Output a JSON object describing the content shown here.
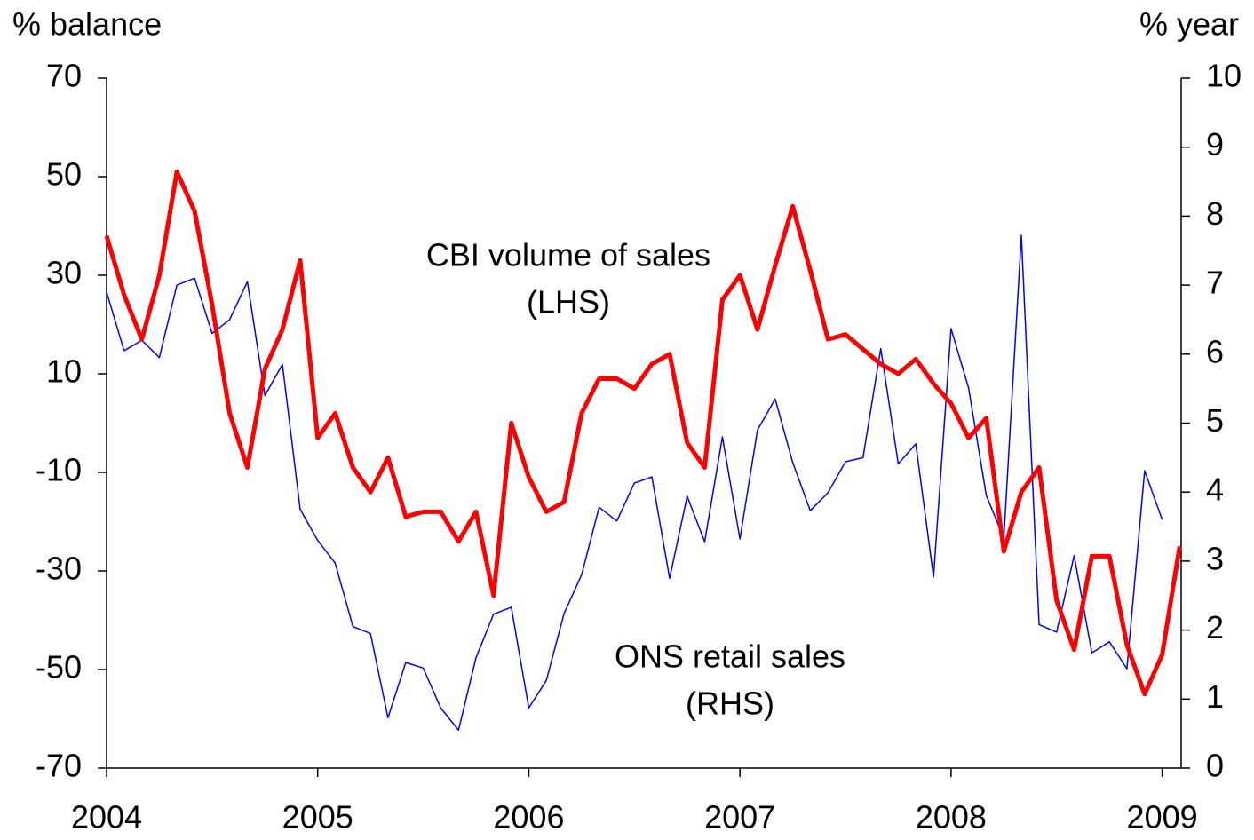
{
  "chart_data": {
    "type": "line",
    "y_label": "% balance",
    "y2_label": "% year",
    "annotations": [
      "CBI volume of sales",
      "(LHS)",
      "ONS retail sales",
      "(RHS)"
    ],
    "x": [
      2004,
      2004.083,
      2004.167,
      2004.25,
      2004.333,
      2004.417,
      2004.5,
      2004.583,
      2004.667,
      2004.75,
      2004.833,
      2004.917,
      2005,
      2005.083,
      2005.167,
      2005.25,
      2005.333,
      2005.417,
      2005.5,
      2005.583,
      2005.667,
      2005.75,
      2005.833,
      2005.917,
      2006,
      2006.083,
      2006.167,
      2006.25,
      2006.333,
      2006.417,
      2006.5,
      2006.583,
      2006.667,
      2006.75,
      2006.833,
      2006.917,
      2007,
      2007.083,
      2007.167,
      2007.25,
      2007.333,
      2007.417,
      2007.5,
      2007.583,
      2007.667,
      2007.75,
      2007.833,
      2007.917,
      2008,
      2008.083,
      2008.167,
      2008.25,
      2008.333,
      2008.417,
      2008.5,
      2008.583,
      2008.667,
      2008.75,
      2008.833,
      2008.917,
      2009,
      2009.083
    ],
    "series": [
      {
        "name": "CBI volume of sales (LHS)",
        "color": "#ff0000",
        "width": 5,
        "axis": "y",
        "values": [
          38,
          26,
          17,
          30,
          51,
          43,
          24,
          2,
          -9,
          11,
          19,
          33,
          -3,
          2,
          -9,
          -14,
          -7,
          -19,
          -18,
          -18,
          -24,
          -18,
          -35,
          0,
          -11,
          -18,
          -16,
          2,
          9,
          9,
          7,
          12,
          14,
          -4,
          -9,
          25,
          30,
          19,
          32,
          44,
          31,
          17,
          18,
          15,
          12,
          10,
          13,
          8,
          4,
          -3,
          1,
          -26,
          -14,
          -9,
          -36,
          -46,
          -27,
          -27,
          -45,
          -55,
          -47,
          -25
        ]
      },
      {
        "name": "ONS retail sales (RHS)",
        "color": "#0000ff",
        "width": 1.5,
        "axis": "y2",
        "values": [
          6.9,
          6.05,
          6.2,
          5.95,
          7.0,
          7.1,
          6.3,
          6.5,
          7.05,
          5.4,
          5.85,
          3.75,
          3.3,
          2.97,
          2.05,
          1.95,
          0.73,
          1.53,
          1.45,
          0.87,
          0.55,
          1.6,
          2.23,
          2.33,
          0.87,
          1.27,
          2.24,
          2.8,
          3.78,
          3.58,
          4.13,
          4.22,
          2.75,
          3.94,
          3.28,
          4.8,
          3.32,
          4.9,
          5.35,
          4.43,
          3.73,
          3.99,
          4.44,
          4.5,
          6.08,
          4.41,
          4.7,
          2.77,
          6.37,
          5.51,
          3.95,
          3.33,
          7.72,
          2.08,
          1.97,
          3.08,
          1.67,
          1.83,
          1.44,
          4.31,
          3.6,
          null
        ]
      }
    ],
    "xlim": [
      2004,
      2009.09
    ],
    "xticks": [
      2004,
      2005,
      2006,
      2007,
      2008,
      2009
    ],
    "ylim": [
      -70,
      70
    ],
    "yticks": [
      -70,
      -50,
      -30,
      -10,
      10,
      30,
      50,
      70
    ],
    "y2lim": [
      0,
      10
    ],
    "y2ticks": [
      0,
      1,
      2,
      3,
      4,
      5,
      6,
      7,
      8,
      9,
      10
    ]
  }
}
